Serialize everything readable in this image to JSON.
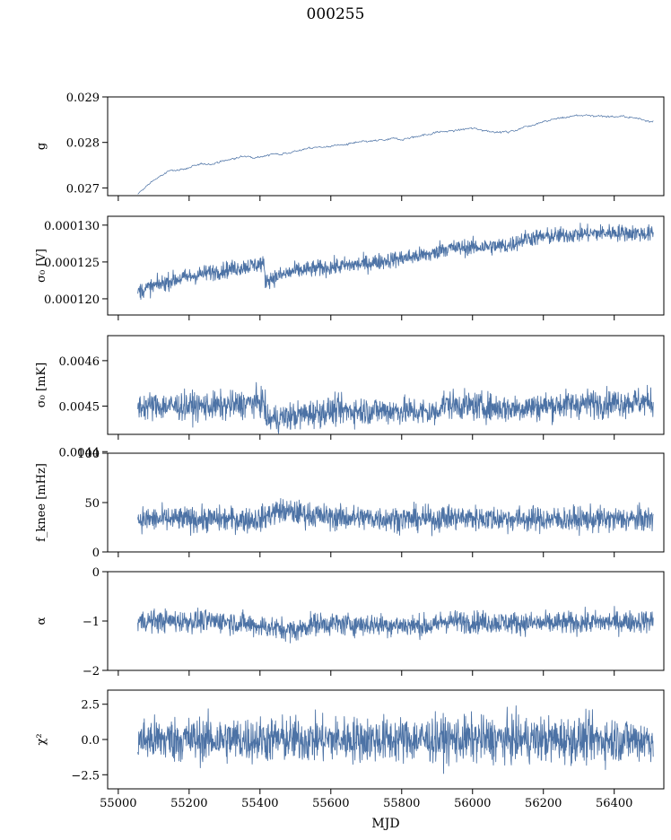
{
  "figure": {
    "title": "000255",
    "xlabel": "MJD",
    "x_ticks": [
      "55000",
      "55200",
      "55400",
      "55600",
      "55800",
      "56000",
      "56200",
      "56400"
    ],
    "x_tick_values": [
      55000,
      55200,
      55400,
      55600,
      55800,
      56000,
      56200,
      56400
    ],
    "xlim": [
      54970,
      56540
    ],
    "line_color": "#4c72a5"
  },
  "chart_data": [
    {
      "type": "line",
      "ylabel": "g",
      "ylim": [
        0.02683,
        0.029
      ],
      "y_ticks": [
        "0.027",
        "0.028",
        "0.029"
      ],
      "y_tick_values": [
        0.027,
        0.028,
        0.029
      ],
      "x_range": [
        55055,
        56510
      ],
      "trend_x": [
        55055,
        55100,
        55150,
        55250,
        55350,
        55450,
        55550,
        55700,
        55800,
        55900,
        56000,
        56100,
        56200,
        56300,
        56400,
        56510
      ],
      "trend_y": [
        0.02685,
        0.02718,
        0.02738,
        0.02752,
        0.02768,
        0.02775,
        0.02788,
        0.028,
        0.02808,
        0.02822,
        0.0283,
        0.02822,
        0.02848,
        0.0286,
        0.02858,
        0.02848
      ],
      "noise": 2e-05
    },
    {
      "type": "line",
      "ylabel": "σ₀ [V]",
      "ylim": [
        0.0001178,
        0.0001312
      ],
      "y_ticks": [
        "0.000120",
        "0.000125",
        "0.000130"
      ],
      "y_tick_values": [
        0.00012,
        0.000125,
        0.00013
      ],
      "x_range": [
        55055,
        56510
      ],
      "trend_x": [
        55055,
        55150,
        55250,
        55410,
        55415,
        55500,
        55700,
        55900,
        55905,
        56100,
        56150,
        56300,
        56400,
        56510
      ],
      "trend_y": [
        0.000121,
        0.0001225,
        0.0001235,
        0.0001248,
        0.0001225,
        0.0001238,
        0.0001248,
        0.0001262,
        0.0001268,
        0.0001272,
        0.0001282,
        0.0001288,
        0.000129,
        0.0001288
      ],
      "noise": 8e-07
    },
    {
      "type": "line",
      "ylabel": "σ₀ [mK]",
      "ylim": [
        0.004438,
        0.004655
      ],
      "y_ticks": [
        "0.0044",
        "0.0045",
        "0.0046"
      ],
      "y_tick_values": [
        0.0044,
        0.0045,
        0.0046
      ],
      "x_range": [
        55055,
        56510
      ],
      "trend_x": [
        55055,
        55200,
        55300,
        55410,
        55420,
        55600,
        55800,
        55900,
        55910,
        56100,
        56300,
        56510
      ],
      "trend_y": [
        0.0045,
        0.0045,
        0.0045,
        0.00451,
        0.00447,
        0.00449,
        0.00449,
        0.004485,
        0.004505,
        0.004495,
        0.004505,
        0.00451
      ],
      "noise": 2.2e-05
    },
    {
      "type": "line",
      "ylabel": "f_knee [mHz]",
      "ylim": [
        0,
        100
      ],
      "y_ticks": [
        "0",
        "50",
        "100"
      ],
      "y_tick_values": [
        0,
        50,
        100
      ],
      "x_range": [
        55055,
        56510
      ],
      "trend_x": [
        55055,
        55400,
        55450,
        55600,
        55900,
        55910,
        56200,
        56510
      ],
      "trend_y": [
        33,
        33,
        42,
        35,
        33,
        35,
        33,
        33
      ],
      "noise": 9
    },
    {
      "type": "line",
      "ylabel": "α",
      "ylim": [
        -2,
        0
      ],
      "y_ticks": [
        "−2",
        "−1",
        "0"
      ],
      "y_tick_values": [
        -2,
        -1,
        0
      ],
      "x_range": [
        55055,
        56510
      ],
      "trend_x": [
        55055,
        55300,
        55500,
        55550,
        55900,
        55910,
        56200,
        56510
      ],
      "trend_y": [
        -1.0,
        -1.0,
        -1.2,
        -1.05,
        -1.1,
        -1.0,
        -1.05,
        -1.0
      ],
      "noise": 0.16
    },
    {
      "type": "line",
      "ylabel": "χ²",
      "ylim": [
        -3.5,
        3.5
      ],
      "y_ticks": [
        "−2.5",
        "0.0",
        "2.5"
      ],
      "y_tick_values": [
        -2.5,
        0,
        2.5
      ],
      "x_range": [
        55055,
        56510
      ],
      "trend_x": [
        55055,
        56510
      ],
      "trend_y": [
        0,
        0
      ],
      "noise": 1.15
    }
  ]
}
